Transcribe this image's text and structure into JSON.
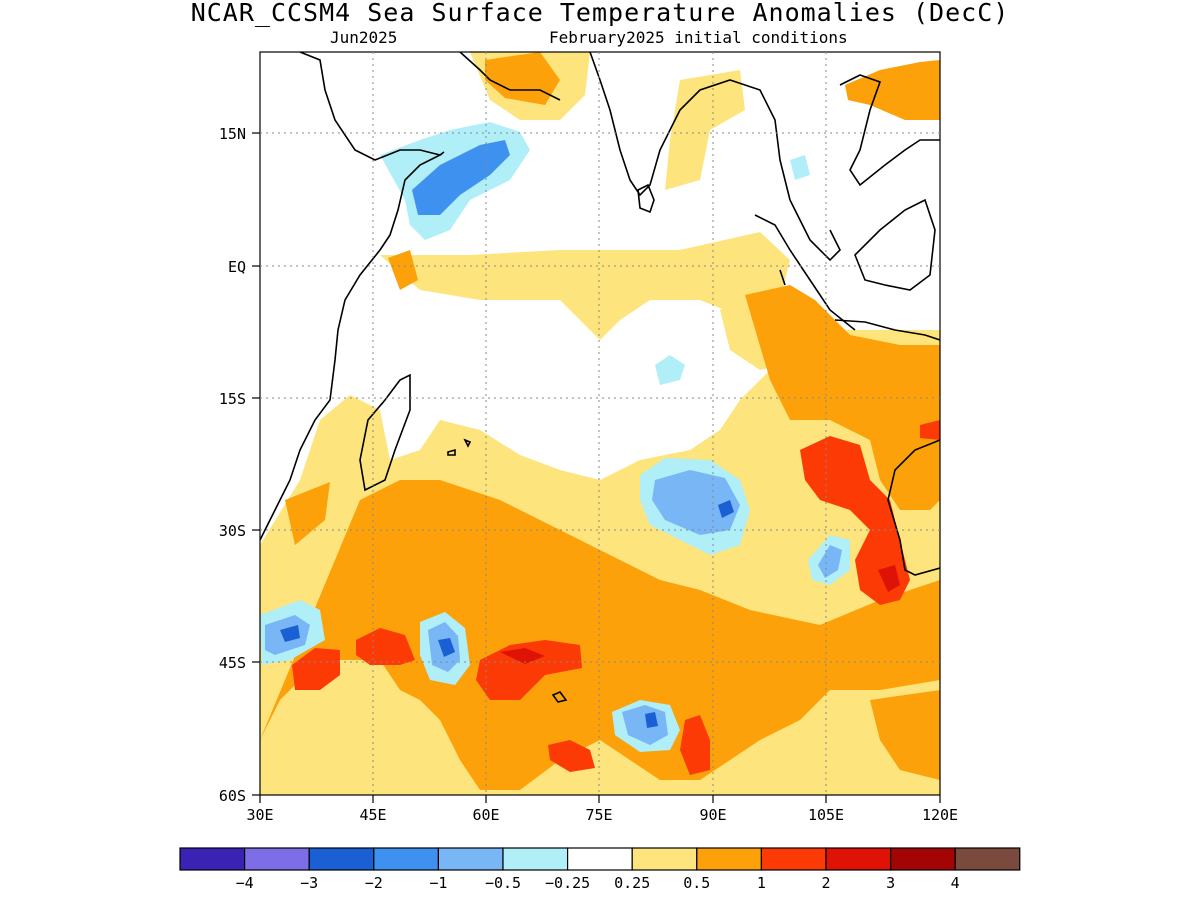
{
  "title": "NCAR_CCSM4 Sea Surface Temperature Anomalies (DecC)",
  "subtitle_left": "Jun2025",
  "subtitle_right": "February2025 initial conditions",
  "lat_labels": [
    "15N",
    "EQ",
    "15S",
    "30S",
    "45S",
    "60S"
  ],
  "lon_labels": [
    "30E",
    "45E",
    "60E",
    "75E",
    "90E",
    "105E",
    "120E"
  ],
  "colorbar": {
    "colors": [
      "#3a23b4",
      "#7d6ee8",
      "#1a5fd4",
      "#3f91ef",
      "#78b6f5",
      "#b0eef8",
      "#ffffff",
      "#fde47c",
      "#fca10a",
      "#fb3a06",
      "#de1205",
      "#a30404",
      "#7a4a3e"
    ],
    "labels": [
      "−4",
      "−3",
      "−2",
      "−1",
      "−0.5",
      "−0.25",
      "0.25",
      "0.5",
      "1",
      "2",
      "3",
      "4"
    ]
  },
  "palette": {
    "pos_025": "#fde47c",
    "pos_05": "#fca10a",
    "pos_1": "#fb3a06",
    "pos_2": "#de1205",
    "neg_025": "#b0eef8",
    "neg_05": "#78b6f5",
    "neg_1": "#3f91ef",
    "neg_2": "#1a5fd4"
  }
}
